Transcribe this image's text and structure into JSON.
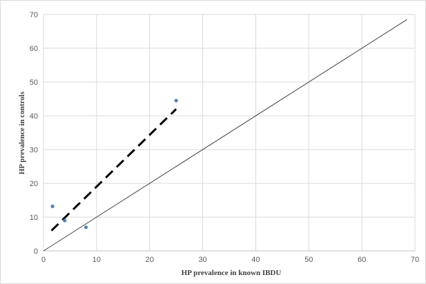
{
  "chart_data": {
    "type": "scatter",
    "xlabel": "HP prevalence in known IBDU",
    "ylabel": "HP prevalence in controls",
    "xlim": [
      0,
      70
    ],
    "ylim": [
      0,
      70
    ],
    "x_ticks": [
      "0",
      "10",
      "20",
      "30",
      "40",
      "50",
      "60",
      "70"
    ],
    "y_ticks": [
      "0",
      "10",
      "20",
      "30",
      "40",
      "50",
      "60",
      "70"
    ],
    "grid": true,
    "legend": "none",
    "points": [
      {
        "x": 1.7,
        "y": 13.2
      },
      {
        "x": 4.0,
        "y": 9.0
      },
      {
        "x": 8.0,
        "y": 7.0
      },
      {
        "x": 25.0,
        "y": 44.5
      }
    ],
    "fit_line": {
      "style": "dashed",
      "from": [
        1.5,
        6.0
      ],
      "to": [
        25.0,
        42.0
      ]
    },
    "reference_line": {
      "style": "solid",
      "from": [
        0,
        0
      ],
      "to": [
        68.5,
        68.5
      ]
    },
    "colors": {
      "points": "#4f81bd",
      "fit_line": "#000000",
      "reference_line": "#404040",
      "grid": "#d9d9d9"
    }
  }
}
